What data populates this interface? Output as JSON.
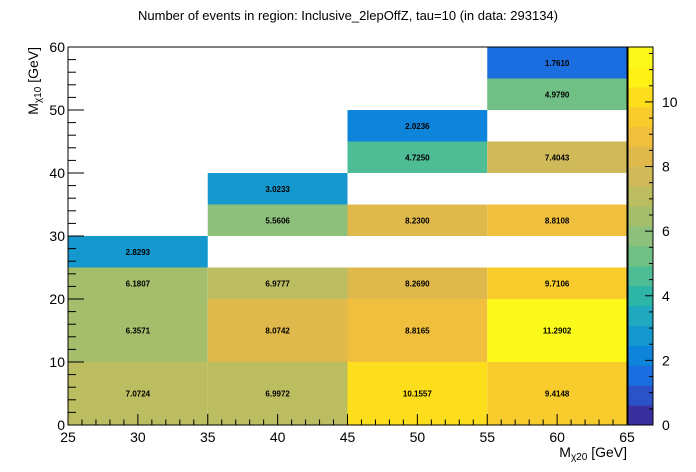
{
  "chart_data": {
    "type": "heatmap",
    "title": "Number of events in region: Inclusive_2lepOffZ, tau=10 (in data: 293134)",
    "xlabel": {
      "main": "M",
      "sub": "χ20",
      "unit": " [GeV]"
    },
    "ylabel": {
      "main": "M",
      "sub": "χ10",
      "unit": " [GeV]"
    },
    "xlim": [
      25,
      65
    ],
    "ylim": [
      0,
      60
    ],
    "x_major_ticks": [
      25,
      30,
      35,
      40,
      45,
      50,
      55,
      60,
      65
    ],
    "y_major_ticks": [
      0,
      10,
      20,
      30,
      40,
      50,
      60
    ],
    "z_range": [
      0,
      11.7
    ],
    "z_ticks": [
      0,
      2,
      4,
      6,
      8,
      10
    ],
    "palette": [
      "#3b2fa0",
      "#2c52c8",
      "#1a6ee0",
      "#0e84da",
      "#1598cd",
      "#20a8bf",
      "#2db5a8",
      "#4ebc94",
      "#70bf85",
      "#8dc07a",
      "#a5be6c",
      "#bcbc60",
      "#cfb958",
      "#e0b94c",
      "#efbf3d",
      "#f8cc2c",
      "#fcde1c",
      "#fdf115",
      "#fbf91a"
    ],
    "cells": [
      {
        "x": [
          25,
          35
        ],
        "y": [
          0,
          10
        ],
        "value": 7.0724,
        "label": "7.0724"
      },
      {
        "x": [
          35,
          45
        ],
        "y": [
          0,
          10
        ],
        "value": 6.9972,
        "label": "6.9972"
      },
      {
        "x": [
          45,
          55
        ],
        "y": [
          0,
          10
        ],
        "value": 10.1557,
        "label": "10.1557"
      },
      {
        "x": [
          55,
          65
        ],
        "y": [
          0,
          10
        ],
        "value": 9.4148,
        "label": "9.4148"
      },
      {
        "x": [
          25,
          35
        ],
        "y": [
          10,
          20
        ],
        "value": 6.3571,
        "label": "6.3571"
      },
      {
        "x": [
          35,
          45
        ],
        "y": [
          10,
          20
        ],
        "value": 8.0742,
        "label": "8.0742"
      },
      {
        "x": [
          45,
          55
        ],
        "y": [
          10,
          20
        ],
        "value": 8.8165,
        "label": "8.8165"
      },
      {
        "x": [
          55,
          65
        ],
        "y": [
          10,
          20
        ],
        "value": 11.2902,
        "label": "11.2902"
      },
      {
        "x": [
          25,
          35
        ],
        "y": [
          20,
          25
        ],
        "value": 6.1807,
        "label": "6.1807"
      },
      {
        "x": [
          35,
          45
        ],
        "y": [
          20,
          25
        ],
        "value": 6.9777,
        "label": "6.9777"
      },
      {
        "x": [
          45,
          55
        ],
        "y": [
          20,
          25
        ],
        "value": 8.269,
        "label": "8.2690"
      },
      {
        "x": [
          55,
          65
        ],
        "y": [
          20,
          25
        ],
        "value": 9.7106,
        "label": "9.7106"
      },
      {
        "x": [
          25,
          35
        ],
        "y": [
          25,
          30
        ],
        "value": 2.8293,
        "label": "2.8293"
      },
      {
        "x": [
          35,
          45
        ],
        "y": [
          30,
          35
        ],
        "value": 5.5606,
        "label": "5.5606"
      },
      {
        "x": [
          45,
          55
        ],
        "y": [
          30,
          35
        ],
        "value": 8.23,
        "label": "8.2300"
      },
      {
        "x": [
          55,
          65
        ],
        "y": [
          30,
          35
        ],
        "value": 8.8108,
        "label": "8.8108"
      },
      {
        "x": [
          35,
          45
        ],
        "y": [
          35,
          40
        ],
        "value": 3.0233,
        "label": "3.0233"
      },
      {
        "x": [
          45,
          55
        ],
        "y": [
          40,
          45
        ],
        "value": 4.725,
        "label": "4.7250"
      },
      {
        "x": [
          55,
          65
        ],
        "y": [
          40,
          45
        ],
        "value": 7.4043,
        "label": "7.4043"
      },
      {
        "x": [
          45,
          55
        ],
        "y": [
          45,
          50
        ],
        "value": 2.0236,
        "label": "2.0236"
      },
      {
        "x": [
          55,
          65
        ],
        "y": [
          50,
          55
        ],
        "value": 4.979,
        "label": "4.9790"
      },
      {
        "x": [
          55,
          65
        ],
        "y": [
          55,
          60
        ],
        "value": 1.761,
        "label": "1.7610"
      }
    ]
  }
}
